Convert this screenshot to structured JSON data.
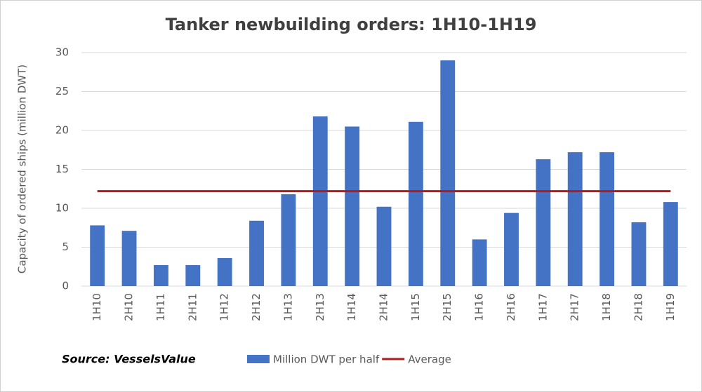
{
  "chart_data": {
    "type": "bar",
    "title": "Tanker newbuilding orders: 1H10-1H19",
    "y_label": "Capacity of ordered ships (million DWT)",
    "source": "Source: VesselsValue",
    "categories": [
      "1H10",
      "2H10",
      "1H11",
      "2H11",
      "1H12",
      "2H12",
      "1H13",
      "2H13",
      "1H14",
      "2H14",
      "1H15",
      "2H15",
      "1H16",
      "2H16",
      "1H17",
      "2H17",
      "1H18",
      "2H18",
      "1H19"
    ],
    "series": [
      {
        "name": "Million DWT per half",
        "type": "bar",
        "color": "#4472c4",
        "values": [
          7.8,
          7.1,
          2.7,
          2.7,
          3.6,
          8.4,
          11.8,
          21.8,
          20.5,
          10.2,
          21.1,
          29.0,
          6.0,
          9.4,
          16.3,
          17.2,
          17.2,
          8.2,
          10.8
        ]
      },
      {
        "name": "Average",
        "type": "line",
        "color": "#b01c1c",
        "values": [
          12.2,
          12.2,
          12.2,
          12.2,
          12.2,
          12.2,
          12.2,
          12.2,
          12.2,
          12.2,
          12.2,
          12.2,
          12.2,
          12.2,
          12.2,
          12.2,
          12.2,
          12.2,
          12.2
        ]
      }
    ],
    "ylim": [
      0,
      30
    ],
    "yticks": [
      0,
      5,
      10,
      15,
      20,
      25,
      30
    ],
    "grid": true,
    "legend": "bottom"
  }
}
